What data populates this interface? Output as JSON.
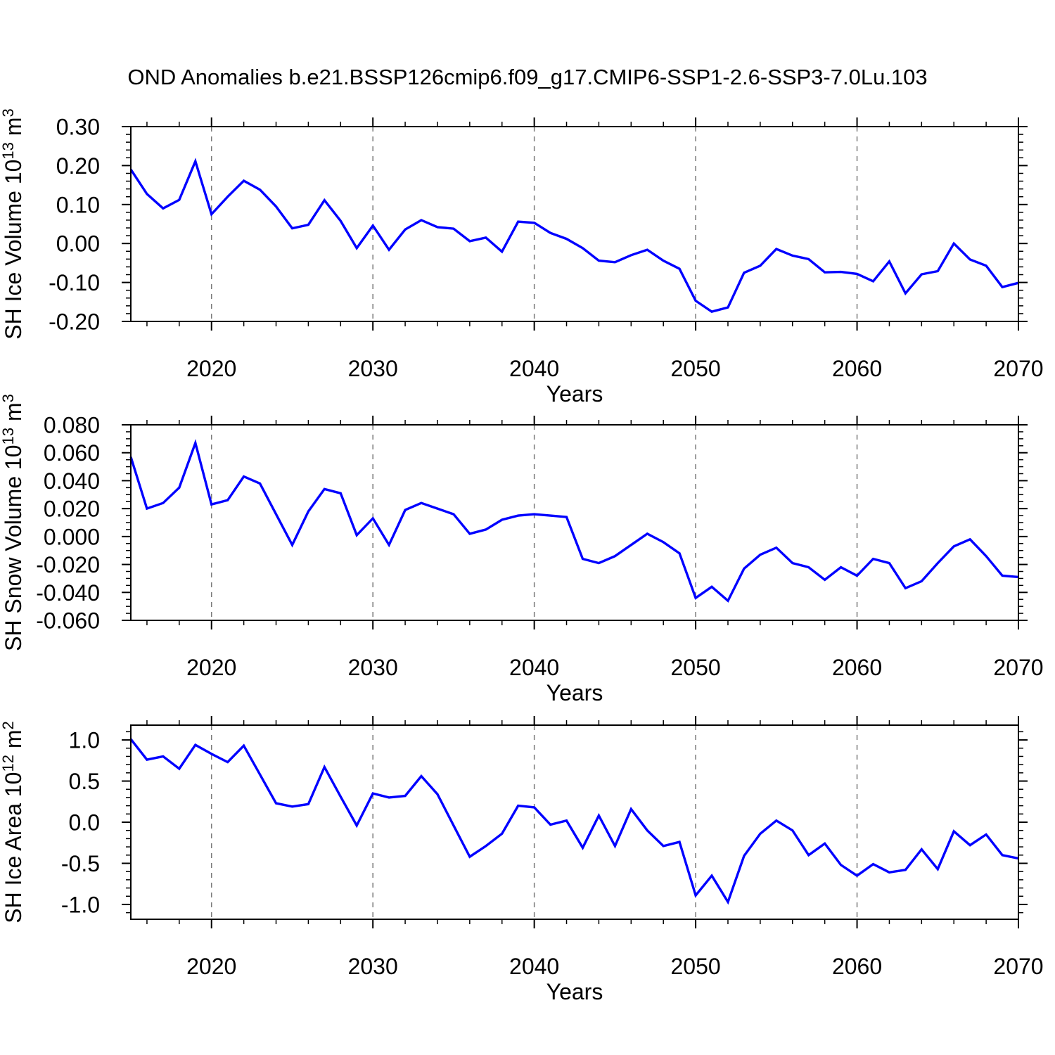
{
  "title": "OND Anomalies b.e21.BSSP126cmip6.f09_g17.CMIP6-SSP1-2.6-SSP3-7.0Lu.103",
  "colors": {
    "line": "#0000ff",
    "grid": "#7a7a7a",
    "axis": "#000000",
    "background": "#ffffff"
  },
  "x_axis": {
    "label": "Years",
    "range": [
      2015,
      2070
    ],
    "major_ticks": [
      2020,
      2030,
      2040,
      2050,
      2060,
      2070
    ],
    "major_tick_labels": [
      "2020",
      "2030",
      "2040",
      "2050",
      "2060",
      "2070"
    ],
    "minor_step": 2,
    "gridlines": [
      2020,
      2030,
      2040,
      2050,
      2060
    ]
  },
  "years": [
    2015,
    2016,
    2017,
    2018,
    2019,
    2020,
    2021,
    2022,
    2023,
    2024,
    2025,
    2026,
    2027,
    2028,
    2029,
    2030,
    2031,
    2032,
    2033,
    2034,
    2035,
    2036,
    2037,
    2038,
    2039,
    2040,
    2041,
    2042,
    2043,
    2044,
    2045,
    2046,
    2047,
    2048,
    2049,
    2050,
    2051,
    2052,
    2053,
    2054,
    2055,
    2056,
    2057,
    2058,
    2059,
    2060,
    2061,
    2062,
    2063,
    2064,
    2065,
    2066,
    2067,
    2068,
    2069,
    2070
  ],
  "chart_data": [
    {
      "type": "line",
      "name": "sh-ice-volume",
      "ylabel_text": "SH Ice Volume 10^13 m^3",
      "ylabel_segments": [
        {
          "t": "SH Ice Volume 10"
        },
        {
          "t": "13",
          "sup": true
        },
        {
          "t": " m"
        },
        {
          "t": "3",
          "sup": true
        }
      ],
      "ylim": [
        -0.2,
        0.3
      ],
      "yticks": [
        0.3,
        0.2,
        0.1,
        0.0,
        -0.1,
        -0.2
      ],
      "ytick_labels": [
        "0.30",
        "0.20",
        "0.10",
        "0.00",
        "-0.10",
        "-0.20"
      ],
      "y_minor_step": 0.02,
      "values": [
        0.19,
        0.127,
        0.09,
        0.112,
        0.211,
        0.075,
        0.12,
        0.161,
        0.138,
        0.095,
        0.039,
        0.048,
        0.111,
        0.058,
        -0.012,
        0.046,
        -0.016,
        0.036,
        0.06,
        0.042,
        0.038,
        0.006,
        0.015,
        -0.021,
        0.056,
        0.053,
        0.027,
        0.012,
        -0.012,
        -0.044,
        -0.048,
        -0.03,
        -0.016,
        -0.044,
        -0.065,
        -0.147,
        -0.175,
        -0.164,
        -0.075,
        -0.057,
        -0.014,
        -0.031,
        -0.04,
        -0.074,
        -0.073,
        -0.078,
        -0.097,
        -0.046,
        -0.128,
        -0.079,
        -0.071,
        0.0,
        -0.041,
        -0.057,
        -0.112,
        -0.101
      ]
    },
    {
      "type": "line",
      "name": "sh-snow-volume",
      "ylabel_text": "SH Snow Volume 10^13 m^3",
      "ylabel_segments": [
        {
          "t": "SH Snow Volume 10"
        },
        {
          "t": "13",
          "sup": true
        },
        {
          "t": " m"
        },
        {
          "t": "3",
          "sup": true
        }
      ],
      "ylim": [
        -0.06,
        0.08
      ],
      "yticks": [
        0.08,
        0.06,
        0.04,
        0.02,
        0.0,
        -0.02,
        -0.04,
        -0.06
      ],
      "ytick_labels": [
        "0.080",
        "0.060",
        "0.040",
        "0.020",
        "0.000",
        "-0.020",
        "-0.040",
        "-0.060"
      ],
      "y_minor_step": 0.005,
      "values": [
        0.057,
        0.02,
        0.024,
        0.035,
        0.067,
        0.023,
        0.026,
        0.043,
        0.038,
        0.016,
        -0.006,
        0.018,
        0.034,
        0.031,
        0.001,
        0.013,
        -0.006,
        0.019,
        0.024,
        0.02,
        0.016,
        0.002,
        0.005,
        0.012,
        0.015,
        0.016,
        0.015,
        0.014,
        -0.016,
        -0.019,
        -0.014,
        -0.006,
        0.002,
        -0.004,
        -0.012,
        -0.044,
        -0.036,
        -0.046,
        -0.023,
        -0.013,
        -0.008,
        -0.019,
        -0.022,
        -0.031,
        -0.022,
        -0.028,
        -0.016,
        -0.019,
        -0.037,
        -0.032,
        -0.019,
        -0.007,
        -0.002,
        -0.014,
        -0.028,
        -0.029
      ]
    },
    {
      "type": "line",
      "name": "sh-ice-area",
      "ylabel_text": "SH Ice Area 10^12 m^2",
      "ylabel_segments": [
        {
          "t": "SH Ice Area 10"
        },
        {
          "t": "12",
          "sup": true
        },
        {
          "t": " m"
        },
        {
          "t": "2",
          "sup": true
        }
      ],
      "ylim": [
        -1.18,
        1.18
      ],
      "yticks": [
        1.0,
        0.5,
        0.0,
        -0.5,
        -1.0
      ],
      "ytick_labels": [
        "1.0",
        "0.5",
        "0.0",
        "-0.5",
        "-1.0"
      ],
      "y_minor_step": 0.1,
      "values": [
        1.01,
        0.76,
        0.8,
        0.65,
        0.94,
        0.83,
        0.73,
        0.93,
        0.58,
        0.23,
        0.19,
        0.22,
        0.67,
        0.31,
        -0.04,
        0.35,
        0.3,
        0.32,
        0.56,
        0.34,
        -0.04,
        -0.42,
        -0.29,
        -0.14,
        0.2,
        0.18,
        -0.03,
        0.02,
        -0.31,
        0.08,
        -0.29,
        0.16,
        -0.1,
        -0.29,
        -0.24,
        -0.89,
        -0.65,
        -0.97,
        -0.41,
        -0.14,
        0.02,
        -0.1,
        -0.4,
        -0.26,
        -0.52,
        -0.65,
        -0.51,
        -0.61,
        -0.58,
        -0.33,
        -0.57,
        -0.11,
        -0.28,
        -0.15,
        -0.4,
        -0.44
      ]
    }
  ]
}
